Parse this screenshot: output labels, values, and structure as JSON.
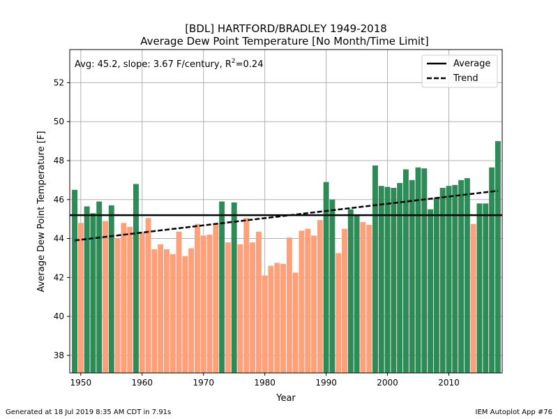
{
  "chart_data": {
    "type": "bar",
    "title_line1": "[BDL] HARTFORD/BRADLEY 1949-2018",
    "title_line2": "Average Dew Point Temperature [No Month/Time Limit]",
    "xlabel": "Year",
    "ylabel": "Average Dew Point Temperature [F]",
    "annotation": {
      "prefix": "Avg: 45.2, slope: 3.67 F/century, R",
      "superscript": "2",
      "suffix": "=0.24"
    },
    "legend": {
      "placement": "top-right",
      "items": [
        {
          "label": "Average",
          "style": "solid"
        },
        {
          "label": "Trend",
          "style": "dashed"
        }
      ]
    },
    "xlim": [
      1948.2,
      2018.7
    ],
    "ylim": [
      37.1,
      53.7
    ],
    "xticks": [
      1950,
      1960,
      1970,
      1980,
      1990,
      2000,
      2010
    ],
    "yticks": [
      38,
      40,
      42,
      44,
      46,
      48,
      50,
      52
    ],
    "grid": true,
    "average": 45.2,
    "trend": {
      "start": [
        1949,
        43.9
      ],
      "end": [
        2018,
        46.45
      ]
    },
    "colors": {
      "above": "#2e8b57",
      "below": "#ffa07a"
    },
    "years": [
      1949,
      1950,
      1951,
      1952,
      1953,
      1954,
      1955,
      1956,
      1957,
      1958,
      1959,
      1960,
      1961,
      1962,
      1963,
      1964,
      1965,
      1966,
      1967,
      1968,
      1969,
      1970,
      1971,
      1972,
      1973,
      1974,
      1975,
      1976,
      1977,
      1978,
      1979,
      1980,
      1981,
      1982,
      1983,
      1984,
      1985,
      1986,
      1987,
      1988,
      1989,
      1990,
      1991,
      1992,
      1993,
      1994,
      1995,
      1996,
      1997,
      1998,
      1999,
      2000,
      2001,
      2002,
      2003,
      2004,
      2005,
      2006,
      2007,
      2008,
      2009,
      2010,
      2011,
      2012,
      2013,
      2014,
      2015,
      2016,
      2017,
      2018
    ],
    "values": [
      46.5,
      44.8,
      45.65,
      45.3,
      45.9,
      44.9,
      45.7,
      44.0,
      44.8,
      44.6,
      46.8,
      44.3,
      45.05,
      43.45,
      43.7,
      43.45,
      43.2,
      44.35,
      43.1,
      43.5,
      44.75,
      44.15,
      44.2,
      44.8,
      45.9,
      43.8,
      45.85,
      43.7,
      45.05,
      43.8,
      44.35,
      42.1,
      42.6,
      42.75,
      42.7,
      44.05,
      42.25,
      44.4,
      44.5,
      44.15,
      44.95,
      46.9,
      46.0,
      43.25,
      44.5,
      45.5,
      45.2,
      44.85,
      44.7,
      47.75,
      46.7,
      46.65,
      46.6,
      46.85,
      47.55,
      47.0,
      47.65,
      47.6,
      45.5,
      46.1,
      46.6,
      46.7,
      46.75,
      47.0,
      47.1,
      44.75,
      45.8,
      45.8,
      47.65,
      49.0
    ]
  },
  "footer": {
    "left": "Generated at 18 Jul 2019 8:35 AM CDT in 7.91s",
    "right": "IEM Autoplot App #76"
  }
}
